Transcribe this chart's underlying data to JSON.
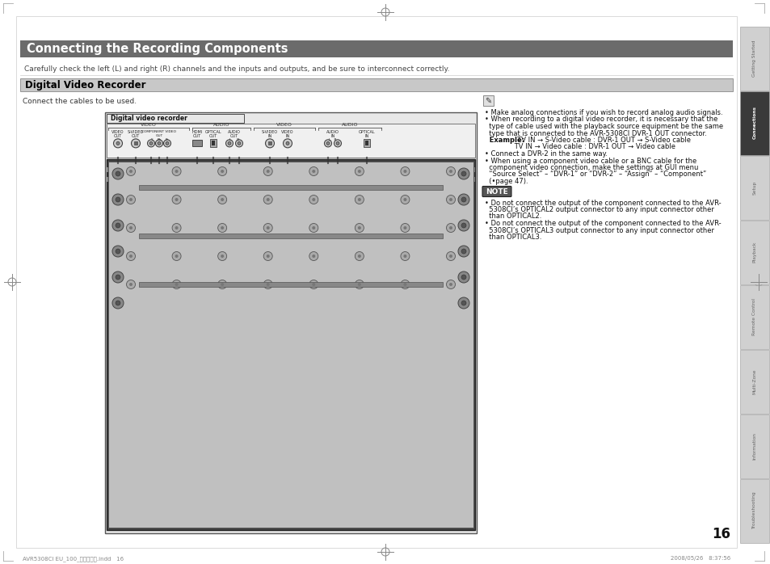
{
  "page_bg": "#ffffff",
  "header_bg": "#6b6b6b",
  "header_text": "Connecting the Recording Components",
  "header_text_color": "#ffffff",
  "header_fontsize": 10.5,
  "subheader_text": "Carefully check the left (L) and right (R) channels and the inputs and outputs, and be sure to interconnect correctly.",
  "subheader_fontsize": 6.5,
  "subheader_color": "#444444",
  "section_bg": "#c8c8c8",
  "section_border": "#888888",
  "section_text": "Digital Video Recorder",
  "section_text_color": "#000000",
  "section_fontsize": 8.5,
  "connect_text": "Connect the cables to be used.",
  "connect_fontsize": 6.5,
  "page_number": "16",
  "tab_labels": [
    "Getting Started",
    "Connections",
    "Setup",
    "Playback",
    "Remote Control",
    "Multi-Zone",
    "Information",
    "Troubleshooting"
  ],
  "tab_active": "Connections",
  "tab_active_bg": "#3a3a3a",
  "tab_inactive_bg": "#d0d0d0",
  "tab_text_color_active": "#ffffff",
  "tab_text_color_inactive": "#666666",
  "note_bg": "#555555",
  "note_text": "NOTE",
  "right_text_lines": [
    [
      "• Make analog connections if you wish to record analog audio signals.",
      false
    ],
    [
      "• When recording to a digital video recorder, it is necessary that the",
      false
    ],
    [
      "  type of cable used with the playback source equipment be the same",
      false
    ],
    [
      "  type that is connected to the AVR-5308CI DVR-1 OUT connector.",
      false
    ],
    [
      "  Example:  TV IN → S-Video cable : DVR-1 OUT → S-Video cable",
      true
    ],
    [
      "              TV IN → Video cable : DVR-1 OUT → Video cable",
      false
    ],
    [
      "• Connect a DVR-2 in the same way.",
      false
    ],
    [
      "• When using a component video cable or a BNC cable for the",
      false
    ],
    [
      "  component video connection, make the settings at GUI menu",
      false
    ],
    [
      "  “Source Select” – “DVR-1” or “DVR-2” – “Assign” – “Component”",
      false
    ],
    [
      "  (•page 47).",
      false
    ]
  ],
  "note_lines": [
    "• Do not connect the output of the component connected to the AVR-",
    "  5308CI’s OPTICAL2 output connector to any input connector other",
    "  than OPTICAL2.",
    "• Do not connect the output of the component connected to the AVR-",
    "  5308CI’s OPTICAL3 output connector to any input connector other",
    "  than OPTICAL3."
  ],
  "footer_left": "AVR5308CI EU_100_初校作業中.indd   16",
  "footer_right": "2008/05/26   8:37:56",
  "crosshair_color": "#888888",
  "border_color": "#aaaaaa"
}
